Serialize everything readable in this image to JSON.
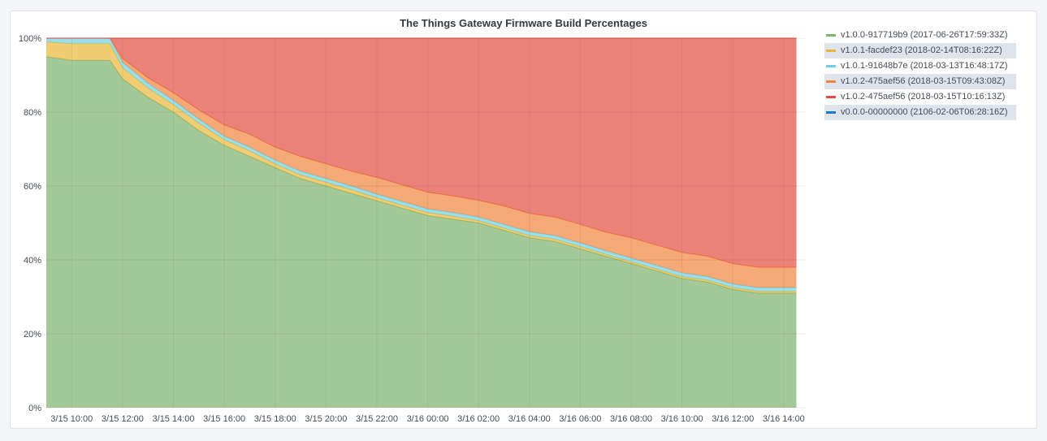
{
  "panel": {
    "title": "The Things Gateway Firmware Build Percentages"
  },
  "chart_data": {
    "type": "area",
    "stacked": true,
    "title": "The Things Gateway Firmware Build Percentages",
    "xlabel": "",
    "ylabel": "",
    "ylim": [
      0,
      100
    ],
    "grid": true,
    "legend": "right",
    "yticks": [
      0,
      20,
      40,
      60,
      80,
      100
    ],
    "ytick_labels": [
      "0%",
      "20%",
      "40%",
      "60%",
      "80%",
      "100%"
    ],
    "x_hours": [
      9,
      10,
      11,
      11.5,
      12,
      13,
      14,
      15,
      16,
      17,
      18,
      19,
      20,
      21,
      22,
      23,
      24,
      25,
      26,
      27,
      28,
      29,
      30,
      31,
      32,
      33,
      34,
      35,
      36,
      37,
      38,
      38.5
    ],
    "xlim_hours": [
      9,
      38.9
    ],
    "xticks_hours": [
      10,
      12,
      14,
      16,
      18,
      20,
      22,
      24,
      26,
      28,
      30,
      32,
      34,
      36,
      38
    ],
    "xtick_labels": [
      "3/15 10:00",
      "3/15 12:00",
      "3/15 14:00",
      "3/15 16:00",
      "3/15 18:00",
      "3/15 20:00",
      "3/15 22:00",
      "3/16 00:00",
      "3/16 02:00",
      "3/16 04:00",
      "3/16 06:00",
      "3/16 08:00",
      "3/16 10:00",
      "3/16 12:00",
      "3/16 14:00"
    ],
    "series": [
      {
        "name": "v1.0.0-917719b9 (2017-06-26T17:59:33Z)",
        "color": "#7eb26d",
        "values": [
          95,
          94,
          94,
          94,
          89,
          84,
          80,
          75,
          71,
          68,
          65,
          62,
          60,
          58,
          56,
          54,
          52,
          51,
          50,
          48,
          46,
          45,
          43,
          41,
          39,
          37,
          35,
          34,
          32,
          31,
          31,
          31
        ]
      },
      {
        "name": "v1.0.1-facdef23 (2018-02-14T08:16:22Z)",
        "color": "#eab839",
        "values": [
          4,
          4.5,
          4.5,
          4.5,
          3,
          2.5,
          2,
          2,
          1.5,
          1.5,
          1,
          1,
          1,
          1,
          0.8,
          0.8,
          0.8,
          0.8,
          0.6,
          0.6,
          0.6,
          0.6,
          0.6,
          0.5,
          0.5,
          0.5,
          0.5,
          0.5,
          0.5,
          0.5,
          0.5,
          0.5
        ]
      },
      {
        "name": "v1.0.1-91648b7e (2018-03-13T16:48:17Z)",
        "color": "#6ed0e0",
        "values": [
          1,
          1.5,
          1.5,
          1.5,
          1.5,
          1.3,
          1.2,
          1.1,
          1,
          1,
          1,
          1,
          1,
          1,
          1,
          1,
          1,
          1,
          1,
          1,
          1,
          1,
          1,
          1,
          1,
          1,
          1,
          1,
          1,
          1,
          1,
          1
        ]
      },
      {
        "name": "v1.0.2-475aef56 (2018-03-15T09:43:08Z)",
        "color": "#ef843c",
        "values": [
          0,
          0,
          0,
          0,
          1,
          1.5,
          2,
          2.5,
          3,
          3.5,
          3.5,
          4,
          4,
          4,
          4.5,
          4.5,
          4.5,
          4.5,
          4.5,
          5,
          5,
          5,
          5,
          5,
          5.5,
          5.5,
          5.5,
          5.5,
          5.5,
          5.5,
          5.5,
          5.5
        ]
      },
      {
        "name": "v1.0.2-475aef56 (2018-03-15T10:16:13Z)",
        "color": "#e24d42",
        "values": [
          0,
          0,
          0,
          0,
          5.5,
          10.7,
          14.8,
          19.4,
          23.5,
          26,
          29.5,
          32,
          34,
          36,
          37.7,
          39.7,
          41.7,
          42.7,
          43.9,
          45.4,
          47.4,
          48.4,
          50.4,
          52.5,
          54,
          56,
          58,
          59,
          61,
          62,
          62,
          62
        ]
      },
      {
        "name": "v0.0.0-00000000 (2106-02-06T06:28:16Z)",
        "color": "#1f78c1",
        "values": [
          0,
          0,
          0,
          0,
          0,
          0,
          0,
          0,
          0,
          0,
          0,
          0,
          0,
          0,
          0,
          0,
          0,
          0,
          0,
          0,
          0,
          0,
          0,
          0,
          0,
          0,
          0,
          0,
          0,
          0,
          0,
          0
        ]
      }
    ]
  }
}
